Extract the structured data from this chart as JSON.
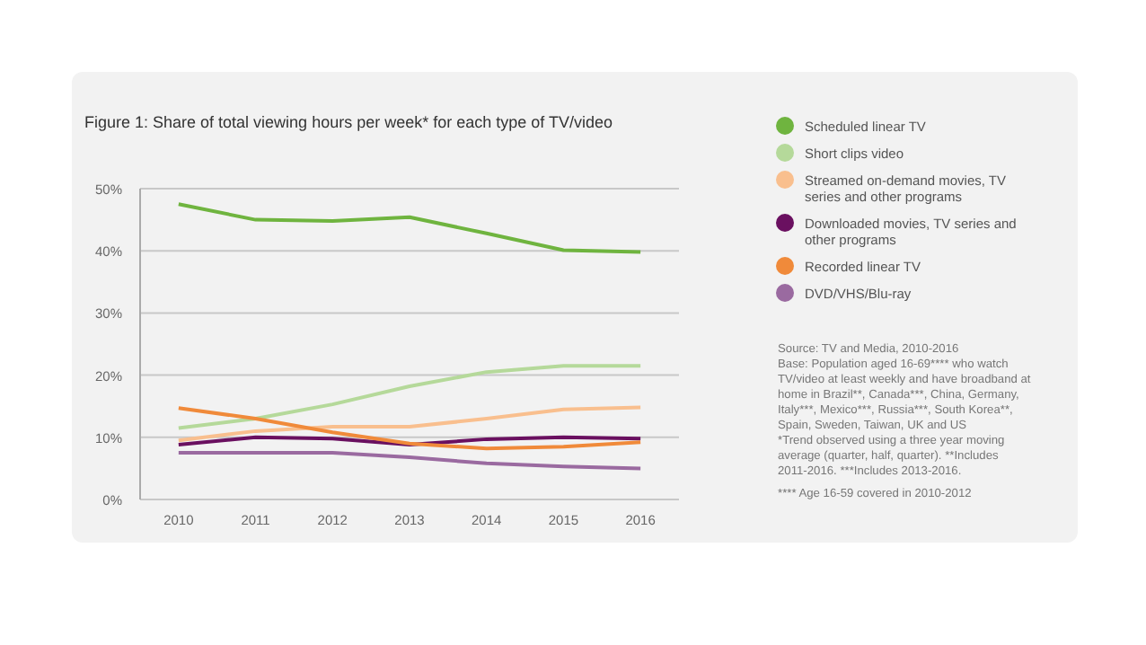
{
  "chart_data": {
    "type": "line",
    "title": "Figure 1: Share of total viewing hours per week* for each type of TV/video",
    "x": [
      2010,
      2011,
      2012,
      2013,
      2014,
      2015,
      2016
    ],
    "xlim": [
      2009.5,
      2016.5
    ],
    "xticks": [
      2010,
      2011,
      2012,
      2013,
      2014,
      2015,
      2016
    ],
    "ylim": [
      0,
      50
    ],
    "yticks": [
      {
        "value": 0,
        "label": "0%"
      },
      {
        "value": 10,
        "label": "10%"
      },
      {
        "value": 20,
        "label": "20%"
      },
      {
        "value": 30,
        "label": "30%"
      },
      {
        "value": 40,
        "label": "40%"
      },
      {
        "value": 50,
        "label": "50%"
      }
    ],
    "grid": "y",
    "legend": "right",
    "marker": "none",
    "line_style": "solid",
    "series": [
      {
        "name": "Scheduled linear TV",
        "color": "#6fb43f",
        "values": [
          47.5,
          45,
          44.8,
          45.4,
          42.8,
          40.1,
          39.8
        ]
      },
      {
        "name": "Short clips video",
        "color": "#b5d99a",
        "values": [
          11.5,
          13,
          15.3,
          18.2,
          20.5,
          21.5,
          21.5
        ]
      },
      {
        "name": "Streamed on-demand movies, TV series and other programs",
        "color": "#f9bf8e",
        "values": [
          9.5,
          11,
          11.7,
          11.7,
          13,
          14.5,
          14.8
        ]
      },
      {
        "name": "Downloaded movies, TV series and other programs",
        "color": "#6a1060",
        "values": [
          8.8,
          10,
          9.8,
          8.8,
          9.7,
          10,
          9.8
        ]
      },
      {
        "name": "Recorded linear TV",
        "color": "#f08a3a",
        "values": [
          14.7,
          13,
          10.8,
          9,
          8.2,
          8.5,
          9.2
        ]
      },
      {
        "name": "DVD/VHS/Blu-ray",
        "color": "#9a6aa0",
        "values": [
          7.5,
          7.5,
          7.5,
          6.8,
          5.8,
          5.3,
          5
        ]
      }
    ],
    "annotations": [
      "Source: TV and Media, 2010-2016",
      "Base: Population aged 16-69**** who watch TV/video at least weekly and have broadband at home in Brazil**, Canada***, China, Germany, Italy***, Mexico***, Russia***, South Korea**, Spain, Sweden, Taiwan, UK and US",
      "*Trend observed using a three year moving average (quarter, half, quarter). **Includes 2011-2016. ***Includes 2013-2016.",
      "**** Age 16-59 covered in 2010-2012"
    ]
  }
}
